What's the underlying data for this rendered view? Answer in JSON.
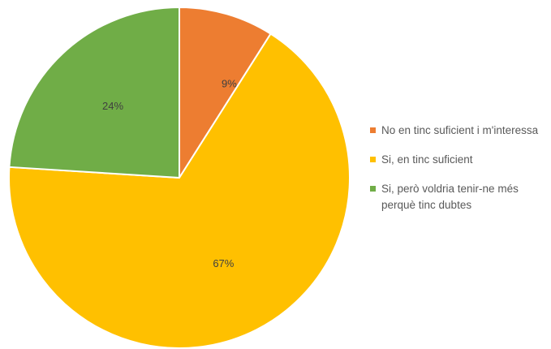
{
  "chart_data": {
    "type": "pie",
    "slices": [
      {
        "name": "No en tinc suficient i m'interessa",
        "value": 9,
        "label": "9%",
        "color": "#ED7D31"
      },
      {
        "name": "Si, en tinc suficient",
        "value": 67,
        "label": "67%",
        "color": "#FFC000"
      },
      {
        "name": "Si, però voldria tenir-ne més perquè tinc dubtes",
        "value": 24,
        "label": "24%",
        "color": "#70AD47"
      }
    ],
    "legend_placement": "right",
    "legend": [
      {
        "lines": [
          "No en tinc suficient i m'interessa"
        ],
        "color": "#ED7D31"
      },
      {
        "lines": [
          "Si, en tinc suficient"
        ],
        "color": "#FFC000"
      },
      {
        "lines": [
          "Si, però voldria tenir-ne més",
          "perquè tinc dubtes"
        ],
        "color": "#70AD47"
      }
    ],
    "start_angle": "12 o'clock",
    "direction": "clockwise"
  }
}
